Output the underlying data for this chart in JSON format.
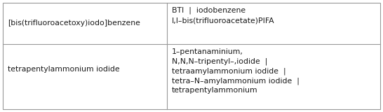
{
  "rows": [
    {
      "left": "[bis(trifluoroacetoxy)iodo]benzene",
      "right": "BTI  |  iodobenzene\nI,I–bis(trifluoroacetate)PIFA"
    },
    {
      "left": "tetrapentylammonium iodide",
      "right": "1–pentanaminium,\nN,N,N–tripentyl–,iodide  |\ntetraamylammonium iodide  |\ntetra–N–amylammonium iodide  |\ntetrapentylammonium"
    }
  ],
  "col_split": 0.435,
  "background_color": "#ffffff",
  "border_color": "#999999",
  "text_color": "#1a1a1a",
  "font_size": 7.8,
  "fig_width": 5.46,
  "fig_height": 1.6,
  "dpi": 100
}
